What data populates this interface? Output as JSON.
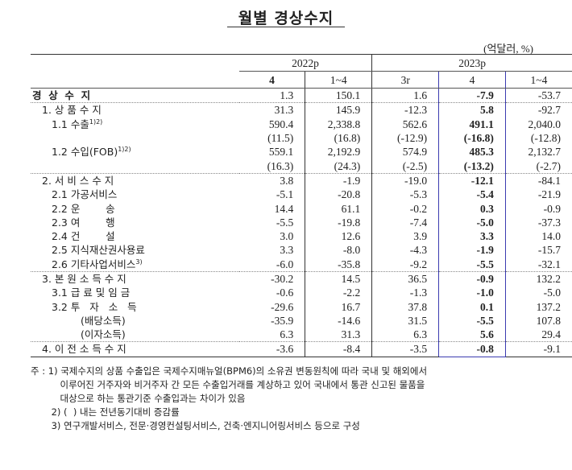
{
  "title": "월별 경상수지",
  "unit": "(억달러, %)",
  "headers": {
    "y2022": "2022p",
    "y2023": "2023p",
    "cols": [
      "4",
      "1~4",
      "3r",
      "4",
      "1~4"
    ]
  },
  "highlight_color": "#3b3bb0",
  "rows": [
    {
      "label": "경  상  수  지",
      "indent": 0,
      "bold": true,
      "values": [
        "1.3",
        "150.1",
        "1.6",
        "-7.9",
        "-53.7"
      ]
    },
    {
      "label": "1. 상 품 수 지",
      "indent": 1,
      "dot": true,
      "values": [
        "31.3",
        "145.9",
        "-12.3",
        "5.8",
        "-92.7"
      ]
    },
    {
      "label": "1.1 수출",
      "sup": "1)2)",
      "indent": 2,
      "values": [
        "590.4",
        "2,338.8",
        "562.6",
        "491.1",
        "2,040.0"
      ]
    },
    {
      "label": "",
      "indent": 2,
      "values": [
        "(11.5)",
        "(16.8)",
        "(-12.9)",
        "(-16.8)",
        "(-12.8)"
      ]
    },
    {
      "label": "1.2 수입(FOB)",
      "sup": "1)2)",
      "indent": 2,
      "values": [
        "559.1",
        "2,192.9",
        "574.9",
        "485.3",
        "2,132.7"
      ]
    },
    {
      "label": "",
      "indent": 2,
      "values": [
        "(16.3)",
        "(24.3)",
        "(-2.5)",
        "(-13.2)",
        "(-2.7)"
      ]
    },
    {
      "label": "2. 서 비 스 수 지",
      "indent": 1,
      "dot": true,
      "values": [
        "3.8",
        "-1.9",
        "-19.0",
        "-12.1",
        "-84.1"
      ]
    },
    {
      "label": "2.1 가공서비스",
      "indent": 2,
      "values": [
        "-5.1",
        "-20.8",
        "-5.3",
        "-5.4",
        "-21.9"
      ]
    },
    {
      "label": "2.2 운        송",
      "indent": 2,
      "values": [
        "14.4",
        "61.1",
        "-0.2",
        "0.3",
        "-0.9"
      ]
    },
    {
      "label": "2.3 여        행",
      "indent": 2,
      "values": [
        "-5.5",
        "-19.8",
        "-7.4",
        "-5.0",
        "-37.3"
      ]
    },
    {
      "label": "2.4 건        설",
      "indent": 2,
      "values": [
        "3.0",
        "12.6",
        "3.9",
        "3.3",
        "14.0"
      ]
    },
    {
      "label": "2.5 지식재산권사용료",
      "indent": 2,
      "values": [
        "3.3",
        "-8.0",
        "-4.3",
        "-1.9",
        "-15.7"
      ]
    },
    {
      "label": "2.6 기타사업서비스",
      "sup": "3)",
      "indent": 2,
      "values": [
        "-6.0",
        "-35.8",
        "-9.2",
        "-5.5",
        "-32.1"
      ]
    },
    {
      "label": "3. 본 원 소 득 수 지",
      "indent": 1,
      "dot": true,
      "values": [
        "-30.2",
        "14.5",
        "36.5",
        "-0.9",
        "132.2"
      ]
    },
    {
      "label": "3.1 급 료 및 임 금",
      "indent": 2,
      "values": [
        "-0.6",
        "-2.2",
        "-1.3",
        "-1.0",
        "-5.0"
      ]
    },
    {
      "label": "3.2 투   자   소   득",
      "indent": 2,
      "values": [
        "-29.6",
        "16.7",
        "37.8",
        "0.1",
        "137.2"
      ]
    },
    {
      "label": "(배당소득)",
      "indent": 3,
      "values": [
        "-35.9",
        "-14.6",
        "31.5",
        "-5.5",
        "107.8"
      ]
    },
    {
      "label": "(이자소득)",
      "indent": 3,
      "values": [
        "6.3",
        "31.3",
        "6.3",
        "5.6",
        "29.4"
      ]
    },
    {
      "label": "4. 이 전 소 득 수 지",
      "indent": 1,
      "dot": true,
      "values": [
        "-3.6",
        "-8.4",
        "-3.5",
        "-0.8",
        "-9.1"
      ]
    }
  ],
  "notes": [
    "주 : 1) 국제수지의 상품 수출입은 국제수지매뉴얼(BPM6)의 소유권 변동원칙에 따라 국내 및 해외에서",
    "          이루어진 거주자와 비거주자 간 모든 수출입거래를 계상하고 있어 국내에서 통관 신고된 물품을",
    "          대상으로 하는 통관기준 수출입과는 차이가 있음",
    "       2) (  ) 내는 전년동기대비 증감률",
    "       3) 연구개발서비스, 전문·경영컨설팅서비스, 건축·엔지니어링서비스 등으로 구성"
  ]
}
